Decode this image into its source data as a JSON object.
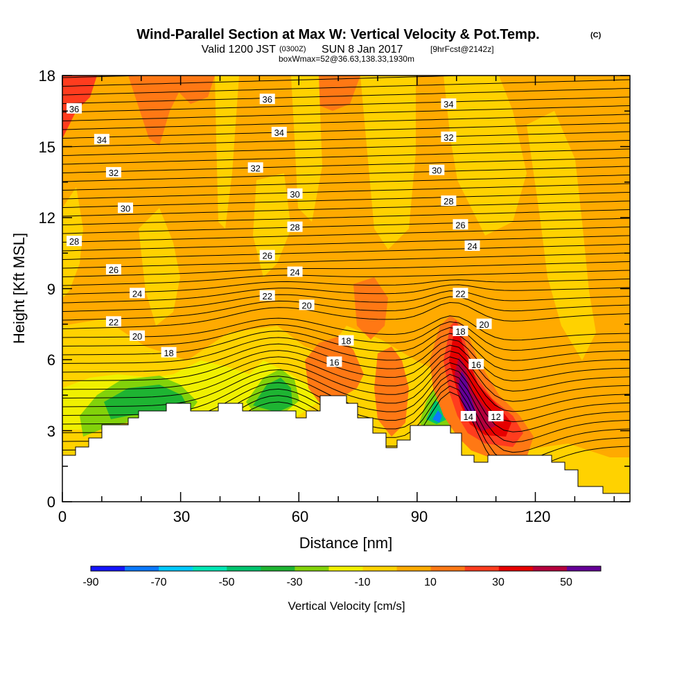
{
  "chart_data": {
    "type": "heatmap",
    "title": "Wind-Parallel Section at Max W: Vertical Velocity & Pot.Temp.",
    "title_suffix": "(C)",
    "subtitle_valid": "Valid 1200 JST",
    "subtitle_utc": "(0300Z)",
    "subtitle_date": "SUN 8 Jan 2017",
    "subtitle_fcst": "[9hrFcst@2142z]",
    "subtitle_box": "boxWmax=52@36.63,138.33,1930m",
    "xlabel": "Distance [nm]",
    "ylabel": "Height [Kft MSL]",
    "xlim": [
      0,
      144
    ],
    "ylim": [
      0,
      18
    ],
    "xticks": [
      "0",
      "30",
      "60",
      "90",
      "120"
    ],
    "yticks": [
      "0",
      "3",
      "6",
      "9",
      "12",
      "15",
      "18"
    ],
    "colorbar": {
      "label": "Vertical Velocity [cm/s]",
      "tick_labels": [
        "-90",
        "-70",
        "-50",
        "-30",
        "-10",
        "10",
        "30",
        "50"
      ],
      "colors": [
        "#1414ff",
        "#0a78ff",
        "#00c8ff",
        "#00e6b4",
        "#00c36e",
        "#1eb432",
        "#82d20a",
        "#f0f000",
        "#ffd200",
        "#ffaa00",
        "#ff7814",
        "#ff3c1e",
        "#e60000",
        "#b4003c",
        "#640096"
      ]
    },
    "contour_labels": [
      {
        "text": "36",
        "x": 3,
        "y": 16.6
      },
      {
        "text": "34",
        "x": 10,
        "y": 15.3
      },
      {
        "text": "32",
        "x": 13,
        "y": 13.9
      },
      {
        "text": "30",
        "x": 16,
        "y": 12.4
      },
      {
        "text": "28",
        "x": 3,
        "y": 11.0
      },
      {
        "text": "26",
        "x": 13,
        "y": 9.8
      },
      {
        "text": "24",
        "x": 19,
        "y": 8.8
      },
      {
        "text": "22",
        "x": 13,
        "y": 7.6
      },
      {
        "text": "20",
        "x": 19,
        "y": 7.0
      },
      {
        "text": "18",
        "x": 27,
        "y": 6.3
      },
      {
        "text": "36",
        "x": 52,
        "y": 17.0
      },
      {
        "text": "34",
        "x": 55,
        "y": 15.6
      },
      {
        "text": "32",
        "x": 49,
        "y": 14.1
      },
      {
        "text": "30",
        "x": 59,
        "y": 13.0
      },
      {
        "text": "28",
        "x": 59,
        "y": 11.6
      },
      {
        "text": "26",
        "x": 52,
        "y": 10.4
      },
      {
        "text": "24",
        "x": 59,
        "y": 9.7
      },
      {
        "text": "22",
        "x": 52,
        "y": 8.7
      },
      {
        "text": "20",
        "x": 62,
        "y": 8.3
      },
      {
        "text": "18",
        "x": 72,
        "y": 6.8
      },
      {
        "text": "16",
        "x": 69,
        "y": 5.9
      },
      {
        "text": "34",
        "x": 98,
        "y": 16.8
      },
      {
        "text": "32",
        "x": 98,
        "y": 15.4
      },
      {
        "text": "30",
        "x": 95,
        "y": 14.0
      },
      {
        "text": "28",
        "x": 98,
        "y": 12.7
      },
      {
        "text": "26",
        "x": 101,
        "y": 11.7
      },
      {
        "text": "24",
        "x": 104,
        "y": 10.8
      },
      {
        "text": "22",
        "x": 101,
        "y": 8.8
      },
      {
        "text": "20",
        "x": 107,
        "y": 7.5
      },
      {
        "text": "18",
        "x": 101,
        "y": 7.2
      },
      {
        "text": "16",
        "x": 105,
        "y": 5.8
      },
      {
        "text": "14",
        "x": 103,
        "y": 3.6
      },
      {
        "text": "12",
        "x": 110,
        "y": 3.6
      }
    ]
  }
}
